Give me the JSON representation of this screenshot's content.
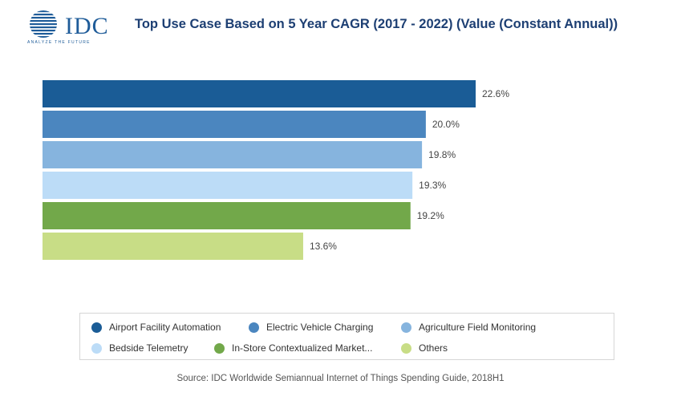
{
  "header": {
    "logo_text": "IDC",
    "logo_tagline": "ANALYZE THE FUTURE",
    "title": "Top Use Case Based on 5 Year CAGR (2017 - 2022) (Value (Constant Annual))"
  },
  "chart_data": {
    "type": "bar",
    "orientation": "horizontal",
    "title": "Top Use Case Based on 5 Year CAGR (2017 - 2022) (Value (Constant Annual))",
    "categories": [
      "Airport Facility Automation",
      "Electric Vehicle Charging",
      "Agriculture Field Monitoring",
      "Bedside Telemetry",
      "In-Store Contextualized Market...",
      "Others"
    ],
    "values": [
      22.6,
      20.0,
      19.8,
      19.3,
      19.2,
      13.6
    ],
    "value_labels": [
      "22.6%",
      "20.0%",
      "19.8%",
      "19.3%",
      "19.2%",
      "13.6%"
    ],
    "colors": [
      "#1a5c96",
      "#4b86bf",
      "#86b4de",
      "#bcdcf7",
      "#72a84a",
      "#c8dd86"
    ],
    "unit": "%",
    "xlim": [
      0,
      22.6
    ],
    "grid": false,
    "legend_position": "bottom"
  },
  "legend": {
    "items": [
      "Airport Facility Automation",
      "Electric Vehicle Charging",
      "Agriculture Field Monitoring",
      "Bedside Telemetry",
      "In-Store Contextualized Market...",
      "Others"
    ]
  },
  "footer": {
    "source": "Source: IDC Worldwide Semiannual Internet of Things Spending Guide, 2018H1"
  }
}
